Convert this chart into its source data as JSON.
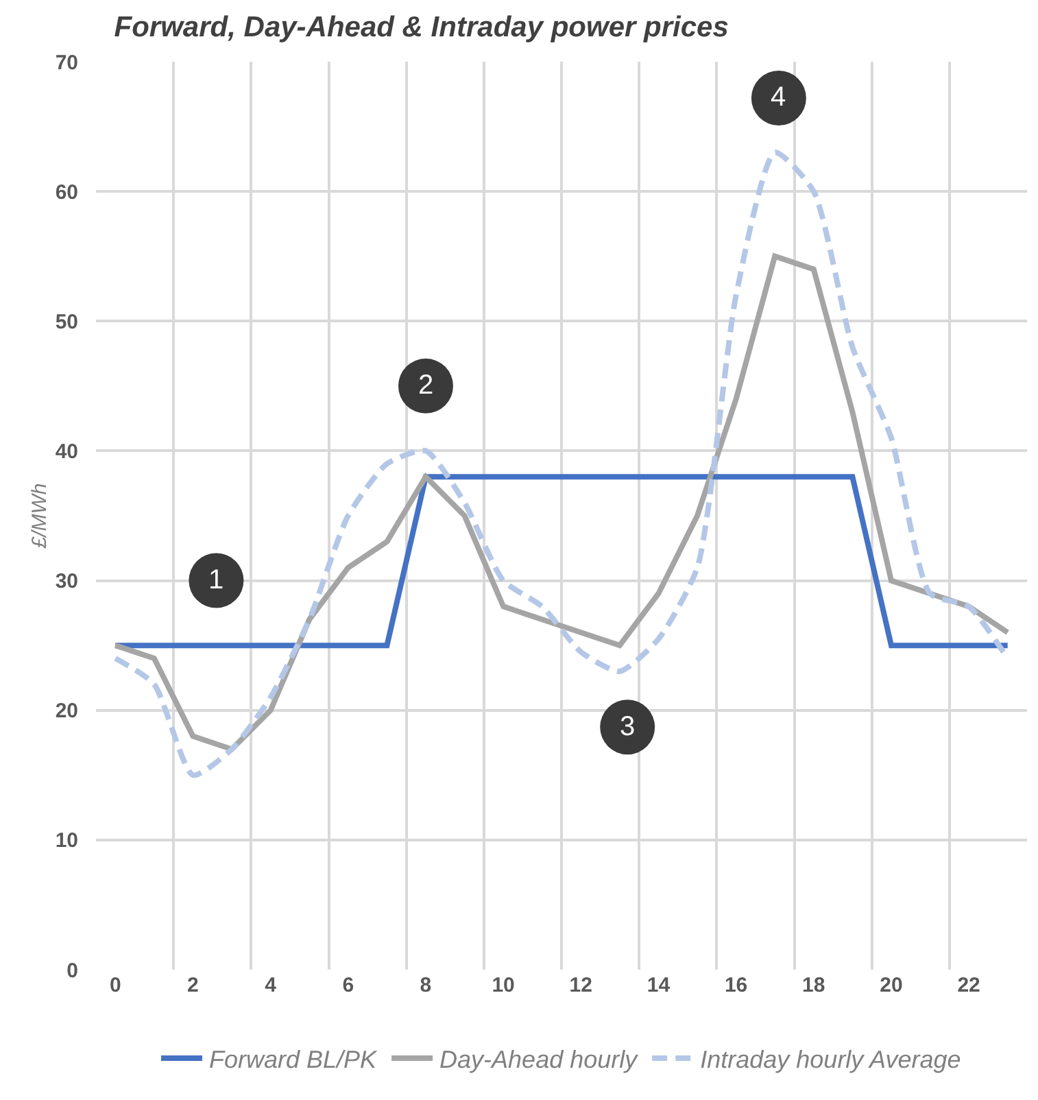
{
  "chart_data": {
    "type": "line",
    "title": "Forward, Day-Ahead & Intraday power prices",
    "ylabel": "£/MWh",
    "x": [
      0,
      1,
      2,
      3,
      4,
      5,
      6,
      7,
      8,
      9,
      10,
      11,
      12,
      13,
      14,
      15,
      16,
      17,
      18,
      19,
      20,
      21,
      22,
      23
    ],
    "xlim": [
      -0.5,
      23.5
    ],
    "xticks": [
      0,
      2,
      4,
      6,
      8,
      10,
      12,
      14,
      16,
      18,
      20,
      22
    ],
    "ylim": [
      0,
      70
    ],
    "yticks": [
      0,
      10,
      20,
      30,
      40,
      50,
      60,
      70
    ],
    "grid": true,
    "legend": "bottom",
    "marker": "none",
    "series": [
      {
        "name": "Forward BL/PK",
        "color": "#4472c4",
        "line_style": "solid",
        "values": [
          25,
          25,
          25,
          25,
          25,
          25,
          25,
          25,
          38,
          38,
          38,
          38,
          38,
          38,
          38,
          38,
          38,
          38,
          38,
          38,
          25,
          25,
          25,
          25
        ]
      },
      {
        "name": "Day-Ahead hourly",
        "color": "#a5a5a5",
        "line_style": "solid",
        "values": [
          25,
          24,
          18,
          17,
          20,
          27,
          31,
          33,
          38,
          35,
          28,
          27,
          26,
          25,
          29,
          35,
          44,
          55,
          54,
          43,
          30,
          29,
          28,
          26
        ]
      },
      {
        "name": "Intraday hourly Average",
        "color": "#b4c7e7",
        "line_style": "dashed",
        "values": [
          24,
          22,
          15,
          17,
          21,
          27,
          35,
          39,
          40,
          36,
          30,
          28,
          24.5,
          23,
          25.5,
          31,
          52,
          63,
          60,
          48,
          41,
          29,
          28,
          24
        ]
      }
    ],
    "annotations": [
      {
        "text": "1",
        "x": 2.6,
        "y": 30
      },
      {
        "text": "2",
        "x": 8,
        "y": 45
      },
      {
        "text": "3",
        "x": 13.2,
        "y": 18.7
      },
      {
        "text": "4",
        "x": 17.1,
        "y": 67.2
      }
    ]
  }
}
